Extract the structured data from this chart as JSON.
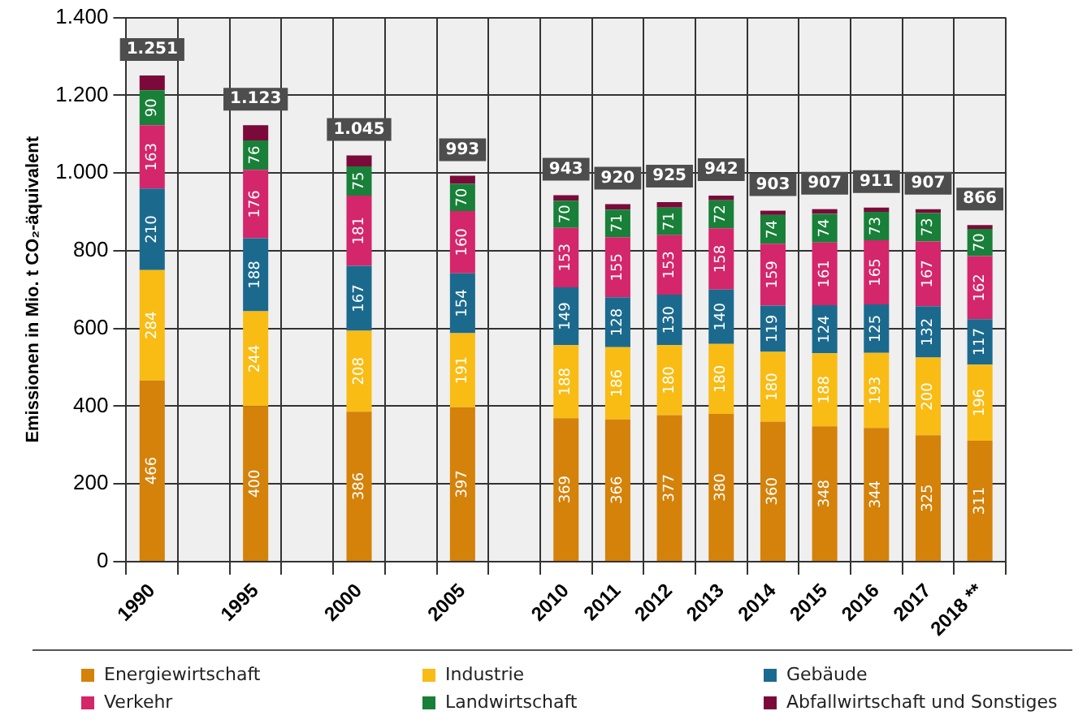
{
  "chart_data": {
    "type": "bar",
    "stacked": true,
    "ylabel": "Emissionen in Mio. t CO₂-äquivalent",
    "categories": [
      "1990",
      null,
      "1995",
      null,
      "2000",
      null,
      "2005",
      null,
      "2010",
      "2011",
      "2012",
      "2013",
      "2014",
      "2015",
      "2016",
      "2017",
      "2018 **"
    ],
    "series": [
      {
        "name": "Energiewirtschaft",
        "color": "#d4820a",
        "values": [
          466,
          null,
          400,
          null,
          386,
          null,
          397,
          null,
          369,
          366,
          377,
          380,
          360,
          348,
          344,
          325,
          311
        ],
        "value_labels": [
          "466",
          null,
          "400",
          null,
          "386",
          null,
          "397",
          null,
          "369",
          "366",
          "377",
          "380",
          "360",
          "348",
          "344",
          "325",
          "311"
        ]
      },
      {
        "name": "Industrie",
        "color": "#f9bc15",
        "values": [
          284,
          null,
          244,
          null,
          208,
          null,
          191,
          null,
          188,
          186,
          180,
          180,
          180,
          188,
          193,
          200,
          196
        ],
        "value_labels": [
          "284",
          null,
          "244",
          null,
          "208",
          null,
          "191",
          null,
          "188",
          "186",
          "180",
          "180",
          "180",
          "188",
          "193",
          "200",
          "196"
        ]
      },
      {
        "name": "Gebäude",
        "color": "#1b6a8e",
        "values": [
          210,
          null,
          188,
          null,
          167,
          null,
          154,
          null,
          149,
          128,
          130,
          140,
          119,
          124,
          125,
          132,
          117
        ],
        "value_labels": [
          "210",
          null,
          "188",
          null,
          "167",
          null,
          "154",
          null,
          "149",
          "128",
          "130",
          "140",
          "119",
          "124",
          "125",
          "132",
          "117"
        ]
      },
      {
        "name": "Verkehr",
        "color": "#d4266b",
        "values": [
          163,
          null,
          176,
          null,
          181,
          null,
          160,
          null,
          153,
          155,
          153,
          158,
          159,
          161,
          165,
          167,
          162
        ],
        "value_labels": [
          "163",
          null,
          "176",
          null,
          "181",
          null,
          "160",
          null,
          "153",
          "155",
          "153",
          "158",
          "159",
          "161",
          "165",
          "167",
          "162"
        ]
      },
      {
        "name": "Landwirtschaft",
        "color": "#188038",
        "values": [
          90,
          null,
          76,
          null,
          75,
          null,
          70,
          null,
          70,
          71,
          71,
          72,
          74,
          74,
          73,
          73,
          70
        ],
        "value_labels": [
          "90",
          null,
          "76",
          null,
          "75",
          null,
          "70",
          null,
          "70",
          "71",
          "71",
          "72",
          "74",
          "74",
          "73",
          "73",
          "70"
        ]
      },
      {
        "name": "Abfallwirtschaft und Sonstiges",
        "color": "#7b0a3a",
        "values": [
          38,
          null,
          39,
          null,
          28,
          null,
          21,
          null,
          14,
          14,
          14,
          12,
          11,
          12,
          11,
          10,
          10
        ]
      }
    ],
    "totals": [
      "1.251",
      null,
      "1.123",
      null,
      "1.045",
      null,
      "993",
      null,
      "943",
      "920",
      "925",
      "942",
      "903",
      "907",
      "911",
      "907",
      "866"
    ],
    "ylim": [
      0,
      1400
    ],
    "yticks": [
      0,
      {
        "value": 200,
        "label": "200"
      },
      {
        "value": 400,
        "label": "400"
      },
      {
        "value": 600,
        "label": "600"
      },
      {
        "value": 800,
        "label": "800"
      },
      {
        "value": 1000,
        "label": "1.000"
      },
      {
        "value": 1200,
        "label": "1.200"
      },
      {
        "value": 1400,
        "label": "1.400"
      }
    ],
    "grid": true,
    "legend": "bottom"
  }
}
